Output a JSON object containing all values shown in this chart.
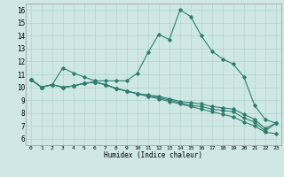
{
  "title": "",
  "xlabel": "Humidex (Indice chaleur)",
  "xlim": [
    -0.5,
    23.5
  ],
  "ylim": [
    5.5,
    16.5
  ],
  "xticks": [
    0,
    1,
    2,
    3,
    4,
    5,
    6,
    7,
    8,
    9,
    10,
    11,
    12,
    13,
    14,
    15,
    16,
    17,
    18,
    19,
    20,
    21,
    22,
    23
  ],
  "yticks": [
    6,
    7,
    8,
    9,
    10,
    11,
    12,
    13,
    14,
    15,
    16
  ],
  "background_color": "#cfe8e5",
  "grid_color": "#b0d4d0",
  "line_color": "#2e7d6e",
  "series": [
    [
      10.6,
      10.0,
      10.2,
      11.5,
      11.1,
      10.8,
      10.5,
      10.5,
      10.5,
      10.5,
      11.1,
      12.7,
      14.1,
      13.7,
      16.0,
      15.5,
      14.0,
      12.8,
      12.2,
      11.8,
      10.8,
      8.6,
      7.5,
      7.2
    ],
    [
      10.6,
      10.0,
      10.2,
      10.0,
      10.1,
      10.3,
      10.4,
      10.2,
      9.9,
      9.7,
      9.5,
      9.3,
      9.1,
      8.9,
      8.7,
      8.5,
      8.3,
      8.1,
      7.9,
      7.7,
      7.3,
      7.0,
      6.5,
      6.4
    ],
    [
      10.6,
      10.0,
      10.2,
      10.0,
      10.1,
      10.3,
      10.4,
      10.2,
      9.9,
      9.7,
      9.5,
      9.3,
      9.2,
      9.0,
      8.8,
      8.6,
      8.5,
      8.3,
      8.2,
      8.1,
      7.6,
      7.3,
      6.6,
      7.2
    ],
    [
      10.6,
      10.0,
      10.2,
      10.0,
      10.1,
      10.3,
      10.4,
      10.2,
      9.9,
      9.7,
      9.5,
      9.4,
      9.3,
      9.1,
      8.9,
      8.8,
      8.7,
      8.5,
      8.4,
      8.3,
      7.9,
      7.5,
      6.8,
      7.2
    ]
  ]
}
